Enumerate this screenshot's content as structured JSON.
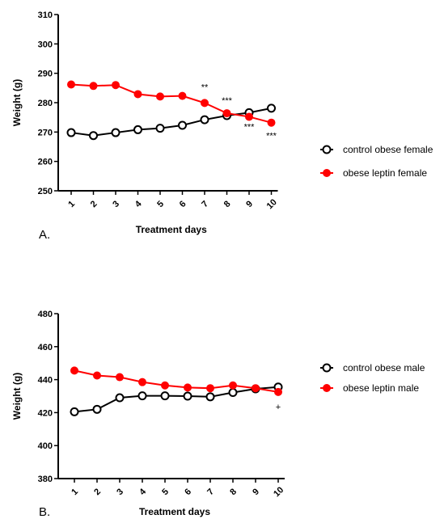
{
  "chart_data": [
    {
      "type": "line",
      "panel_label": "A.",
      "xlabel": "Treatment days",
      "ylabel": "Weight (g)",
      "categories": [
        "1",
        "2",
        "3",
        "4",
        "5",
        "6",
        "7",
        "8",
        "9",
        "10"
      ],
      "ylim": [
        250,
        310
      ],
      "yticks": [
        250,
        260,
        270,
        280,
        290,
        300,
        310
      ],
      "legend_position": "right",
      "series": [
        {
          "name": "control obese  female",
          "color": "#000000",
          "marker": "open-circle",
          "values": [
            269.8,
            268.8,
            269.8,
            270.8,
            271.3,
            272.3,
            274.2,
            275.6,
            276.6,
            278.1
          ]
        },
        {
          "name": "obese leptin female",
          "color": "#ff0000",
          "marker": "filled-circle",
          "values": [
            286.2,
            285.7,
            286.0,
            282.9,
            282.1,
            282.3,
            279.9,
            276.4,
            275.2,
            273.2
          ]
        }
      ],
      "annotations": [
        {
          "text": "**",
          "category": "7"
        },
        {
          "text": "***",
          "category": "8"
        },
        {
          "text": "***",
          "category": "9"
        },
        {
          "text": "***",
          "category": "10"
        }
      ]
    },
    {
      "type": "line",
      "panel_label": "B.",
      "xlabel": "Treatment days",
      "ylabel": "Weight (g)",
      "categories": [
        "1",
        "2",
        "3",
        "4",
        "5",
        "6",
        "7",
        "8",
        "9",
        "10"
      ],
      "ylim": [
        380,
        480
      ],
      "yticks": [
        380,
        400,
        420,
        440,
        460,
        480
      ],
      "legend_position": "right",
      "series": [
        {
          "name": "control obese  male",
          "color": "#000000",
          "marker": "open-circle",
          "values": [
            420.5,
            422.0,
            429.0,
            430.2,
            430.2,
            430.0,
            429.6,
            432.2,
            434.4,
            435.5
          ]
        },
        {
          "name": "obese leptin male",
          "color": "#ff0000",
          "marker": "filled-circle",
          "values": [
            445.5,
            442.5,
            441.5,
            438.5,
            436.5,
            435.2,
            434.8,
            436.5,
            434.8,
            432.5
          ]
        }
      ],
      "annotations": [
        {
          "text": "+",
          "category": "10"
        }
      ]
    }
  ]
}
